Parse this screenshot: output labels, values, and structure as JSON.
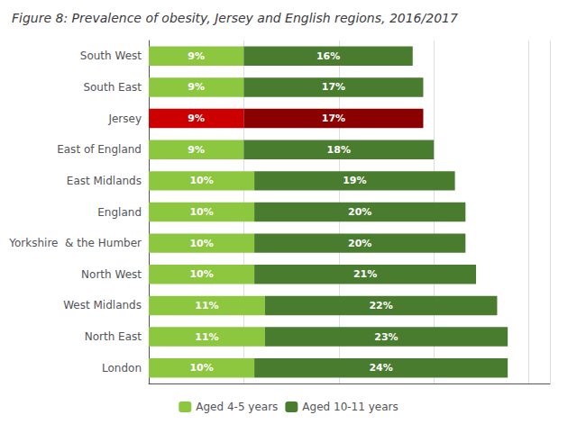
{
  "chart_data": {
    "type": "bar",
    "title": "Figure 8: Prevalence of obesity, Jersey and English regions, 2016/2017",
    "orientation": "horizontal",
    "stacked": true,
    "data_labels": true,
    "grid": true,
    "legend": "bottom",
    "tick_labels": "y",
    "categories": [
      "South West",
      "South East",
      "Jersey",
      "East of England",
      "East Midlands",
      "England",
      "Yorkshire  & the Humber",
      "North West",
      "West Midlands",
      "North East",
      "London"
    ],
    "xlim": [
      0,
      38
    ],
    "xticks": [
      0,
      9,
      18,
      27,
      36
    ],
    "series": [
      {
        "name": "Aged 4-5 years",
        "color": "#8dc63f",
        "colors": [
          "#8dc63f",
          "#8dc63f",
          "#cc0000",
          "#8dc63f",
          "#8dc63f",
          "#8dc63f",
          "#8dc63f",
          "#8dc63f",
          "#8dc63f",
          "#8dc63f",
          "#8dc63f"
        ],
        "values": [
          9,
          9,
          9,
          9,
          10,
          10,
          10,
          10,
          11,
          11,
          10
        ],
        "value_labels": [
          "9%",
          "9%",
          "9%",
          "9%",
          "10%",
          "10%",
          "10%",
          "10%",
          "11%",
          "11%",
          "10%"
        ]
      },
      {
        "name": "Aged 10-11 years",
        "color": "#4a7c2f",
        "colors": [
          "#4a7c2f",
          "#4a7c2f",
          "#8b0000",
          "#4a7c2f",
          "#4a7c2f",
          "#4a7c2f",
          "#4a7c2f",
          "#4a7c2f",
          "#4a7c2f",
          "#4a7c2f",
          "#4a7c2f"
        ],
        "values": [
          16,
          17,
          17,
          18,
          19,
          20,
          20,
          21,
          22,
          23,
          24
        ],
        "value_labels": [
          "16%",
          "17%",
          "17%",
          "18%",
          "19%",
          "20%",
          "20%",
          "21%",
          "22%",
          "23%",
          "24%"
        ]
      }
    ]
  }
}
